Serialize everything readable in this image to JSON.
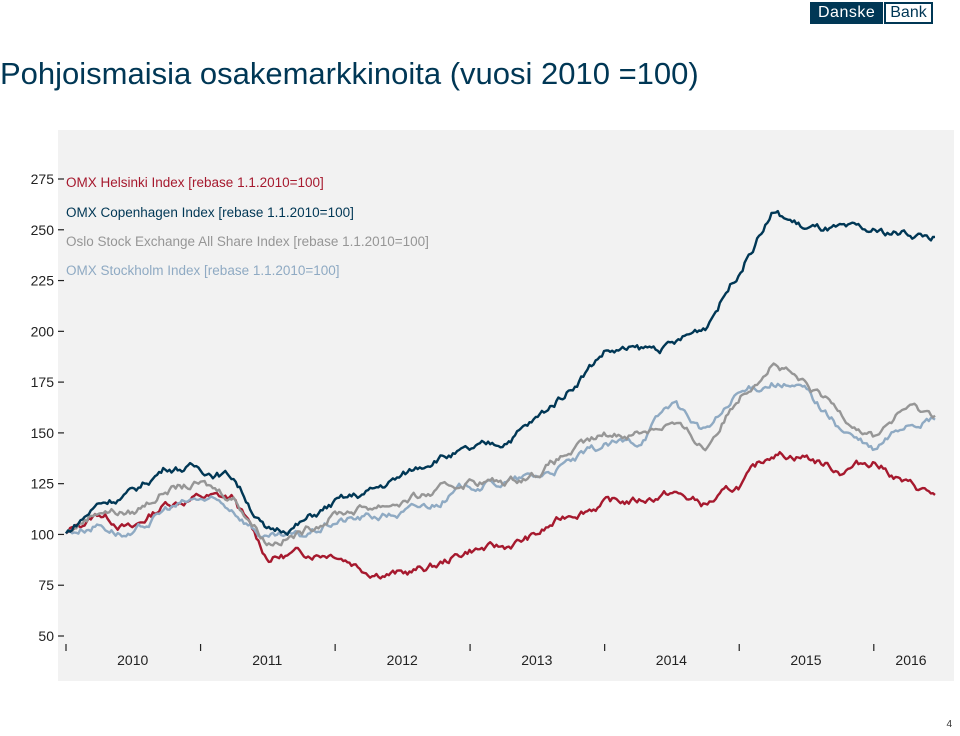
{
  "logo": {
    "part1": "Danske",
    "part2": "Bank"
  },
  "title": "Pohjoismaisia osakemarkkinoita (vuosi 2010 =100)",
  "page_number": "4",
  "chart_data": {
    "type": "line",
    "title": "",
    "xlabel": "",
    "ylabel": "",
    "x_ticks": [
      "2010",
      "2011",
      "2012",
      "2013",
      "2014",
      "2015",
      "2016"
    ],
    "ylim": [
      50,
      275
    ],
    "y_ticks": [
      275,
      250,
      225,
      200,
      175,
      150,
      125,
      100,
      75,
      50
    ],
    "grid": false,
    "legend_position": "top-left",
    "series": [
      {
        "name": "OMX Helsinki Index [rebase 1.1.2010=100]",
        "color": "#a6192e",
        "x": [
          "2010-01-01",
          "2010-04-01",
          "2010-07-01",
          "2010-10-01",
          "2011-01-01",
          "2011-04-01",
          "2011-07-01",
          "2011-10-01",
          "2012-01-01",
          "2012-04-01",
          "2012-07-01",
          "2012-10-01",
          "2013-01-01",
          "2013-04-01",
          "2013-07-01",
          "2013-10-01",
          "2014-01-01",
          "2014-04-01",
          "2014-07-01",
          "2014-10-01",
          "2015-01-01",
          "2015-04-01",
          "2015-07-01",
          "2015-10-01",
          "2016-01-01",
          "2016-04-01",
          "2016-06-15"
        ],
        "values": [
          100,
          110,
          102,
          115,
          118,
          117,
          88,
          90,
          91,
          82,
          80,
          84,
          92,
          93,
          99,
          110,
          115,
          116,
          120,
          114,
          123,
          140,
          138,
          131,
          136,
          124,
          119
        ]
      },
      {
        "name": "OMX Copenhagen Index [rebase 1.1.2010=100]",
        "color": "#003755",
        "x": [
          "2010-01-01",
          "2010-04-01",
          "2010-07-01",
          "2010-10-01",
          "2011-01-01",
          "2011-04-01",
          "2011-07-01",
          "2011-10-01",
          "2012-01-01",
          "2012-04-01",
          "2012-07-01",
          "2012-10-01",
          "2013-01-01",
          "2013-04-01",
          "2013-07-01",
          "2013-10-01",
          "2014-01-01",
          "2014-04-01",
          "2014-07-01",
          "2014-10-01",
          "2015-01-01",
          "2015-04-01",
          "2015-07-01",
          "2015-10-01",
          "2016-01-01",
          "2016-04-01",
          "2016-06-15"
        ],
        "values": [
          100,
          115,
          120,
          133,
          132,
          128,
          100,
          105,
          115,
          120,
          128,
          138,
          140,
          145,
          156,
          172,
          190,
          190,
          192,
          202,
          230,
          258,
          250,
          249,
          248,
          248,
          246
        ]
      },
      {
        "name": "Oslo Stock Exchange All Share Index [rebase 1.1.2010=100]",
        "color": "#969696",
        "x": [
          "2010-01-01",
          "2010-04-01",
          "2010-07-01",
          "2010-10-01",
          "2011-01-01",
          "2011-04-01",
          "2011-07-01",
          "2011-10-01",
          "2012-01-01",
          "2012-04-01",
          "2012-07-01",
          "2012-10-01",
          "2013-01-01",
          "2013-04-01",
          "2013-07-01",
          "2013-10-01",
          "2014-01-01",
          "2014-04-01",
          "2014-07-01",
          "2014-10-01",
          "2015-01-01",
          "2015-04-01",
          "2015-07-01",
          "2015-10-01",
          "2016-01-01",
          "2016-04-01",
          "2016-06-15"
        ],
        "values": [
          100,
          112,
          110,
          122,
          124,
          118,
          96,
          100,
          110,
          113,
          116,
          120,
          126,
          125,
          130,
          140,
          148,
          150,
          155,
          142,
          168,
          185,
          172,
          160,
          148,
          162,
          158
        ]
      },
      {
        "name": "OMX Stockholm Index [rebase 1.1.2010=100]",
        "color": "#8faac3",
        "x": [
          "2010-01-01",
          "2010-04-01",
          "2010-07-01",
          "2010-10-01",
          "2011-01-01",
          "2011-04-01",
          "2011-07-01",
          "2011-10-01",
          "2012-01-01",
          "2012-04-01",
          "2012-07-01",
          "2012-10-01",
          "2013-01-01",
          "2013-04-01",
          "2013-07-01",
          "2013-10-01",
          "2014-01-01",
          "2014-04-01",
          "2014-07-01",
          "2014-10-01",
          "2015-01-01",
          "2015-04-01",
          "2015-07-01",
          "2015-10-01",
          "2016-01-01",
          "2016-04-01",
          "2016-06-15"
        ],
        "values": [
          100,
          105,
          98,
          112,
          117,
          112,
          97,
          98,
          106,
          108,
          110,
          115,
          124,
          125,
          128,
          135,
          143,
          145,
          165,
          150,
          168,
          175,
          170,
          152,
          140,
          155,
          156
        ]
      }
    ]
  }
}
